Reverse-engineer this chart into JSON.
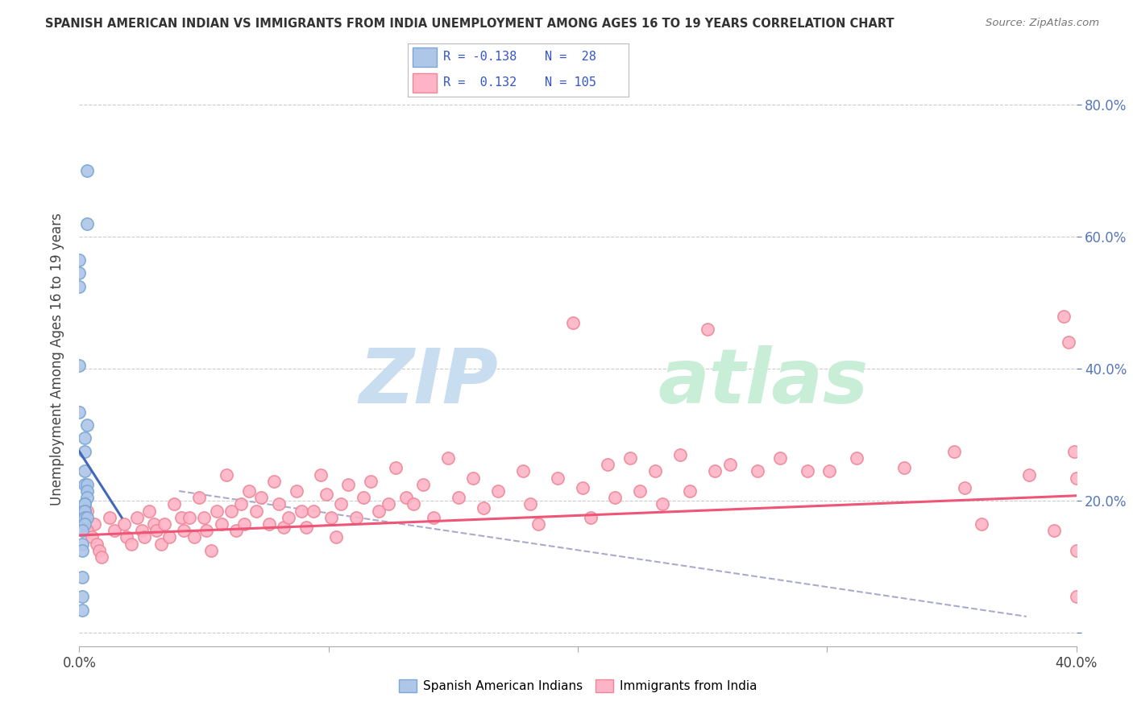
{
  "title": "SPANISH AMERICAN INDIAN VS IMMIGRANTS FROM INDIA UNEMPLOYMENT AMONG AGES 16 TO 19 YEARS CORRELATION CHART",
  "source": "Source: ZipAtlas.com",
  "ylabel": "Unemployment Among Ages 16 to 19 years",
  "watermark_zip": "ZIP",
  "watermark_atlas": "atlas",
  "legend_blue_r": "R = -0.138",
  "legend_blue_n": "N =  28",
  "legend_pink_r": "R =  0.132",
  "legend_pink_n": "N = 105",
  "blue_face": "#AEC6E8",
  "blue_edge": "#7BA7D4",
  "pink_face": "#FFB3C6",
  "pink_edge": "#EE8899",
  "trend_blue_color": "#4466BB",
  "trend_pink_color": "#EE5577",
  "trend_gray_color": "#AAAACC",
  "legend_text_color": "#3355CC",
  "xmin": 0.0,
  "xmax": 0.4,
  "ymin": -0.02,
  "ymax": 0.85,
  "yticks": [
    0.0,
    0.2,
    0.4,
    0.6,
    0.8
  ],
  "ytick_labels_right": [
    "",
    "20.0%",
    "40.0%",
    "60.0%",
    "80.0%"
  ],
  "xtick_positions": [
    0.0,
    0.1,
    0.2,
    0.3,
    0.4
  ],
  "xtick_labels": [
    "0.0%",
    "",
    "",
    "",
    "40.0%"
  ],
  "blue_x": [
    0.003,
    0.003,
    0.0,
    0.0,
    0.0,
    0.0,
    0.0,
    0.003,
    0.002,
    0.002,
    0.002,
    0.002,
    0.003,
    0.003,
    0.003,
    0.002,
    0.002,
    0.002,
    0.002,
    0.002,
    0.003,
    0.002,
    0.001,
    0.001,
    0.001,
    0.001,
    0.001,
    0.001
  ],
  "blue_y": [
    0.7,
    0.62,
    0.565,
    0.545,
    0.525,
    0.405,
    0.335,
    0.315,
    0.295,
    0.275,
    0.245,
    0.225,
    0.225,
    0.215,
    0.205,
    0.195,
    0.195,
    0.185,
    0.185,
    0.175,
    0.175,
    0.165,
    0.155,
    0.135,
    0.125,
    0.085,
    0.055,
    0.035
  ],
  "pink_x": [
    0.003,
    0.006,
    0.003,
    0.005,
    0.007,
    0.008,
    0.009,
    0.012,
    0.014,
    0.018,
    0.019,
    0.021,
    0.023,
    0.025,
    0.026,
    0.028,
    0.03,
    0.031,
    0.033,
    0.034,
    0.036,
    0.038,
    0.041,
    0.042,
    0.044,
    0.046,
    0.048,
    0.05,
    0.051,
    0.053,
    0.055,
    0.057,
    0.059,
    0.061,
    0.063,
    0.065,
    0.066,
    0.068,
    0.071,
    0.073,
    0.076,
    0.078,
    0.08,
    0.082,
    0.084,
    0.087,
    0.089,
    0.091,
    0.094,
    0.097,
    0.099,
    0.101,
    0.103,
    0.105,
    0.108,
    0.111,
    0.114,
    0.117,
    0.12,
    0.124,
    0.127,
    0.131,
    0.134,
    0.138,
    0.142,
    0.148,
    0.152,
    0.158,
    0.162,
    0.168,
    0.178,
    0.181,
    0.184,
    0.192,
    0.198,
    0.202,
    0.205,
    0.212,
    0.215,
    0.221,
    0.225,
    0.231,
    0.234,
    0.241,
    0.245,
    0.252,
    0.255,
    0.261,
    0.272,
    0.281,
    0.292,
    0.301,
    0.312,
    0.331,
    0.351,
    0.355,
    0.362,
    0.381,
    0.391,
    0.395,
    0.397,
    0.399,
    0.4,
    0.4,
    0.4
  ],
  "pink_y": [
    0.185,
    0.165,
    0.155,
    0.145,
    0.135,
    0.125,
    0.115,
    0.175,
    0.155,
    0.165,
    0.145,
    0.135,
    0.175,
    0.155,
    0.145,
    0.185,
    0.165,
    0.155,
    0.135,
    0.165,
    0.145,
    0.195,
    0.175,
    0.155,
    0.175,
    0.145,
    0.205,
    0.175,
    0.155,
    0.125,
    0.185,
    0.165,
    0.24,
    0.185,
    0.155,
    0.195,
    0.165,
    0.215,
    0.185,
    0.205,
    0.165,
    0.23,
    0.195,
    0.16,
    0.175,
    0.215,
    0.185,
    0.16,
    0.185,
    0.24,
    0.21,
    0.175,
    0.145,
    0.195,
    0.225,
    0.175,
    0.205,
    0.23,
    0.185,
    0.195,
    0.25,
    0.205,
    0.195,
    0.225,
    0.175,
    0.265,
    0.205,
    0.235,
    0.19,
    0.215,
    0.245,
    0.195,
    0.165,
    0.235,
    0.47,
    0.22,
    0.175,
    0.255,
    0.205,
    0.265,
    0.215,
    0.245,
    0.195,
    0.27,
    0.215,
    0.46,
    0.245,
    0.255,
    0.245,
    0.265,
    0.245,
    0.245,
    0.265,
    0.25,
    0.275,
    0.22,
    0.165,
    0.24,
    0.155,
    0.48,
    0.44,
    0.275,
    0.235,
    0.125,
    0.055
  ],
  "blue_trend_x": [
    0.0,
    0.017
  ],
  "blue_trend_y": [
    0.275,
    0.175
  ],
  "pink_trend_x": [
    0.0,
    0.4
  ],
  "pink_trend_y": [
    0.148,
    0.208
  ],
  "gray_trend_x": [
    0.04,
    0.38
  ],
  "gray_trend_y": [
    0.215,
    0.025
  ],
  "bg_color": "#FFFFFF",
  "grid_color": "#CCCCCC",
  "right_axis_color": "#5577BB",
  "bottom_legend_labels": [
    "Spanish American Indians",
    "Immigrants from India"
  ]
}
